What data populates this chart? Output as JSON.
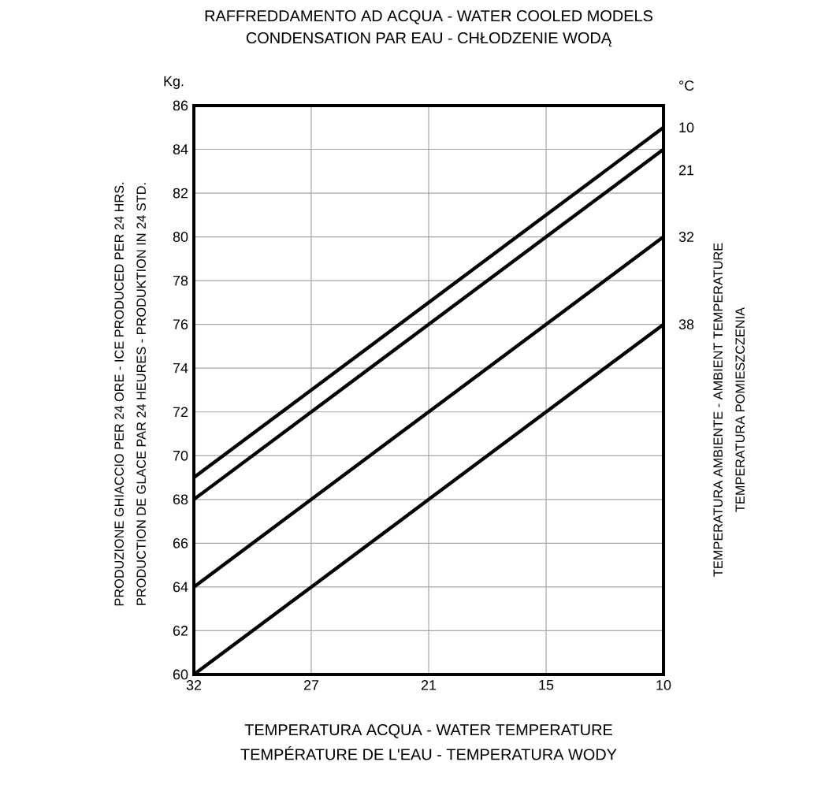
{
  "chart_data": {
    "type": "line",
    "title": "RAFFREDDAMENTO AD ACQUA - WATER COOLED MODELS",
    "subtitle": "CONDENSATION PAR EAU - CHŁODZENIE WODĄ",
    "xlabel": "TEMPERATURA ACQUA - WATER TEMPERATURE",
    "ylabel": "PRODUZIONE GHIACCIO PER 24 ORE - ICE PRODUCED PER 24 HRS.",
    "y2label": "TEMPERATURA AMBIENTE - AMBIENT TEMPERATURE",
    "legend_title": "°C",
    "annotations": [
      "Kg.",
      "PRODUCTION DE GLACE PAR 24 HEURES - PRODUKTION IN 24 STD.",
      "TEMPÉRATURE DE L'EAU - TEMPERATURA WODY",
      "TEMPERATURA POMIESZCZENIA"
    ],
    "categories": [
      "32",
      "27",
      "21",
      "15",
      "10"
    ],
    "series": [
      {
        "name": "10",
        "color": "#000000",
        "values": [
          69,
          73,
          77,
          81,
          85
        ]
      },
      {
        "name": "21",
        "color": "#000000",
        "values": [
          68,
          72,
          76,
          80,
          84
        ]
      },
      {
        "name": "32",
        "color": "#000000",
        "values": [
          64,
          68,
          72,
          76,
          80
        ]
      },
      {
        "name": "38",
        "color": "#000000",
        "values": [
          60,
          64,
          68,
          72,
          76
        ]
      }
    ],
    "ylim": [
      60,
      86
    ],
    "yticks": [
      60,
      62,
      64,
      66,
      68,
      70,
      72,
      74,
      76,
      78,
      80,
      82,
      84,
      86
    ],
    "grid": true,
    "marker": "none",
    "line_style": "solid"
  }
}
